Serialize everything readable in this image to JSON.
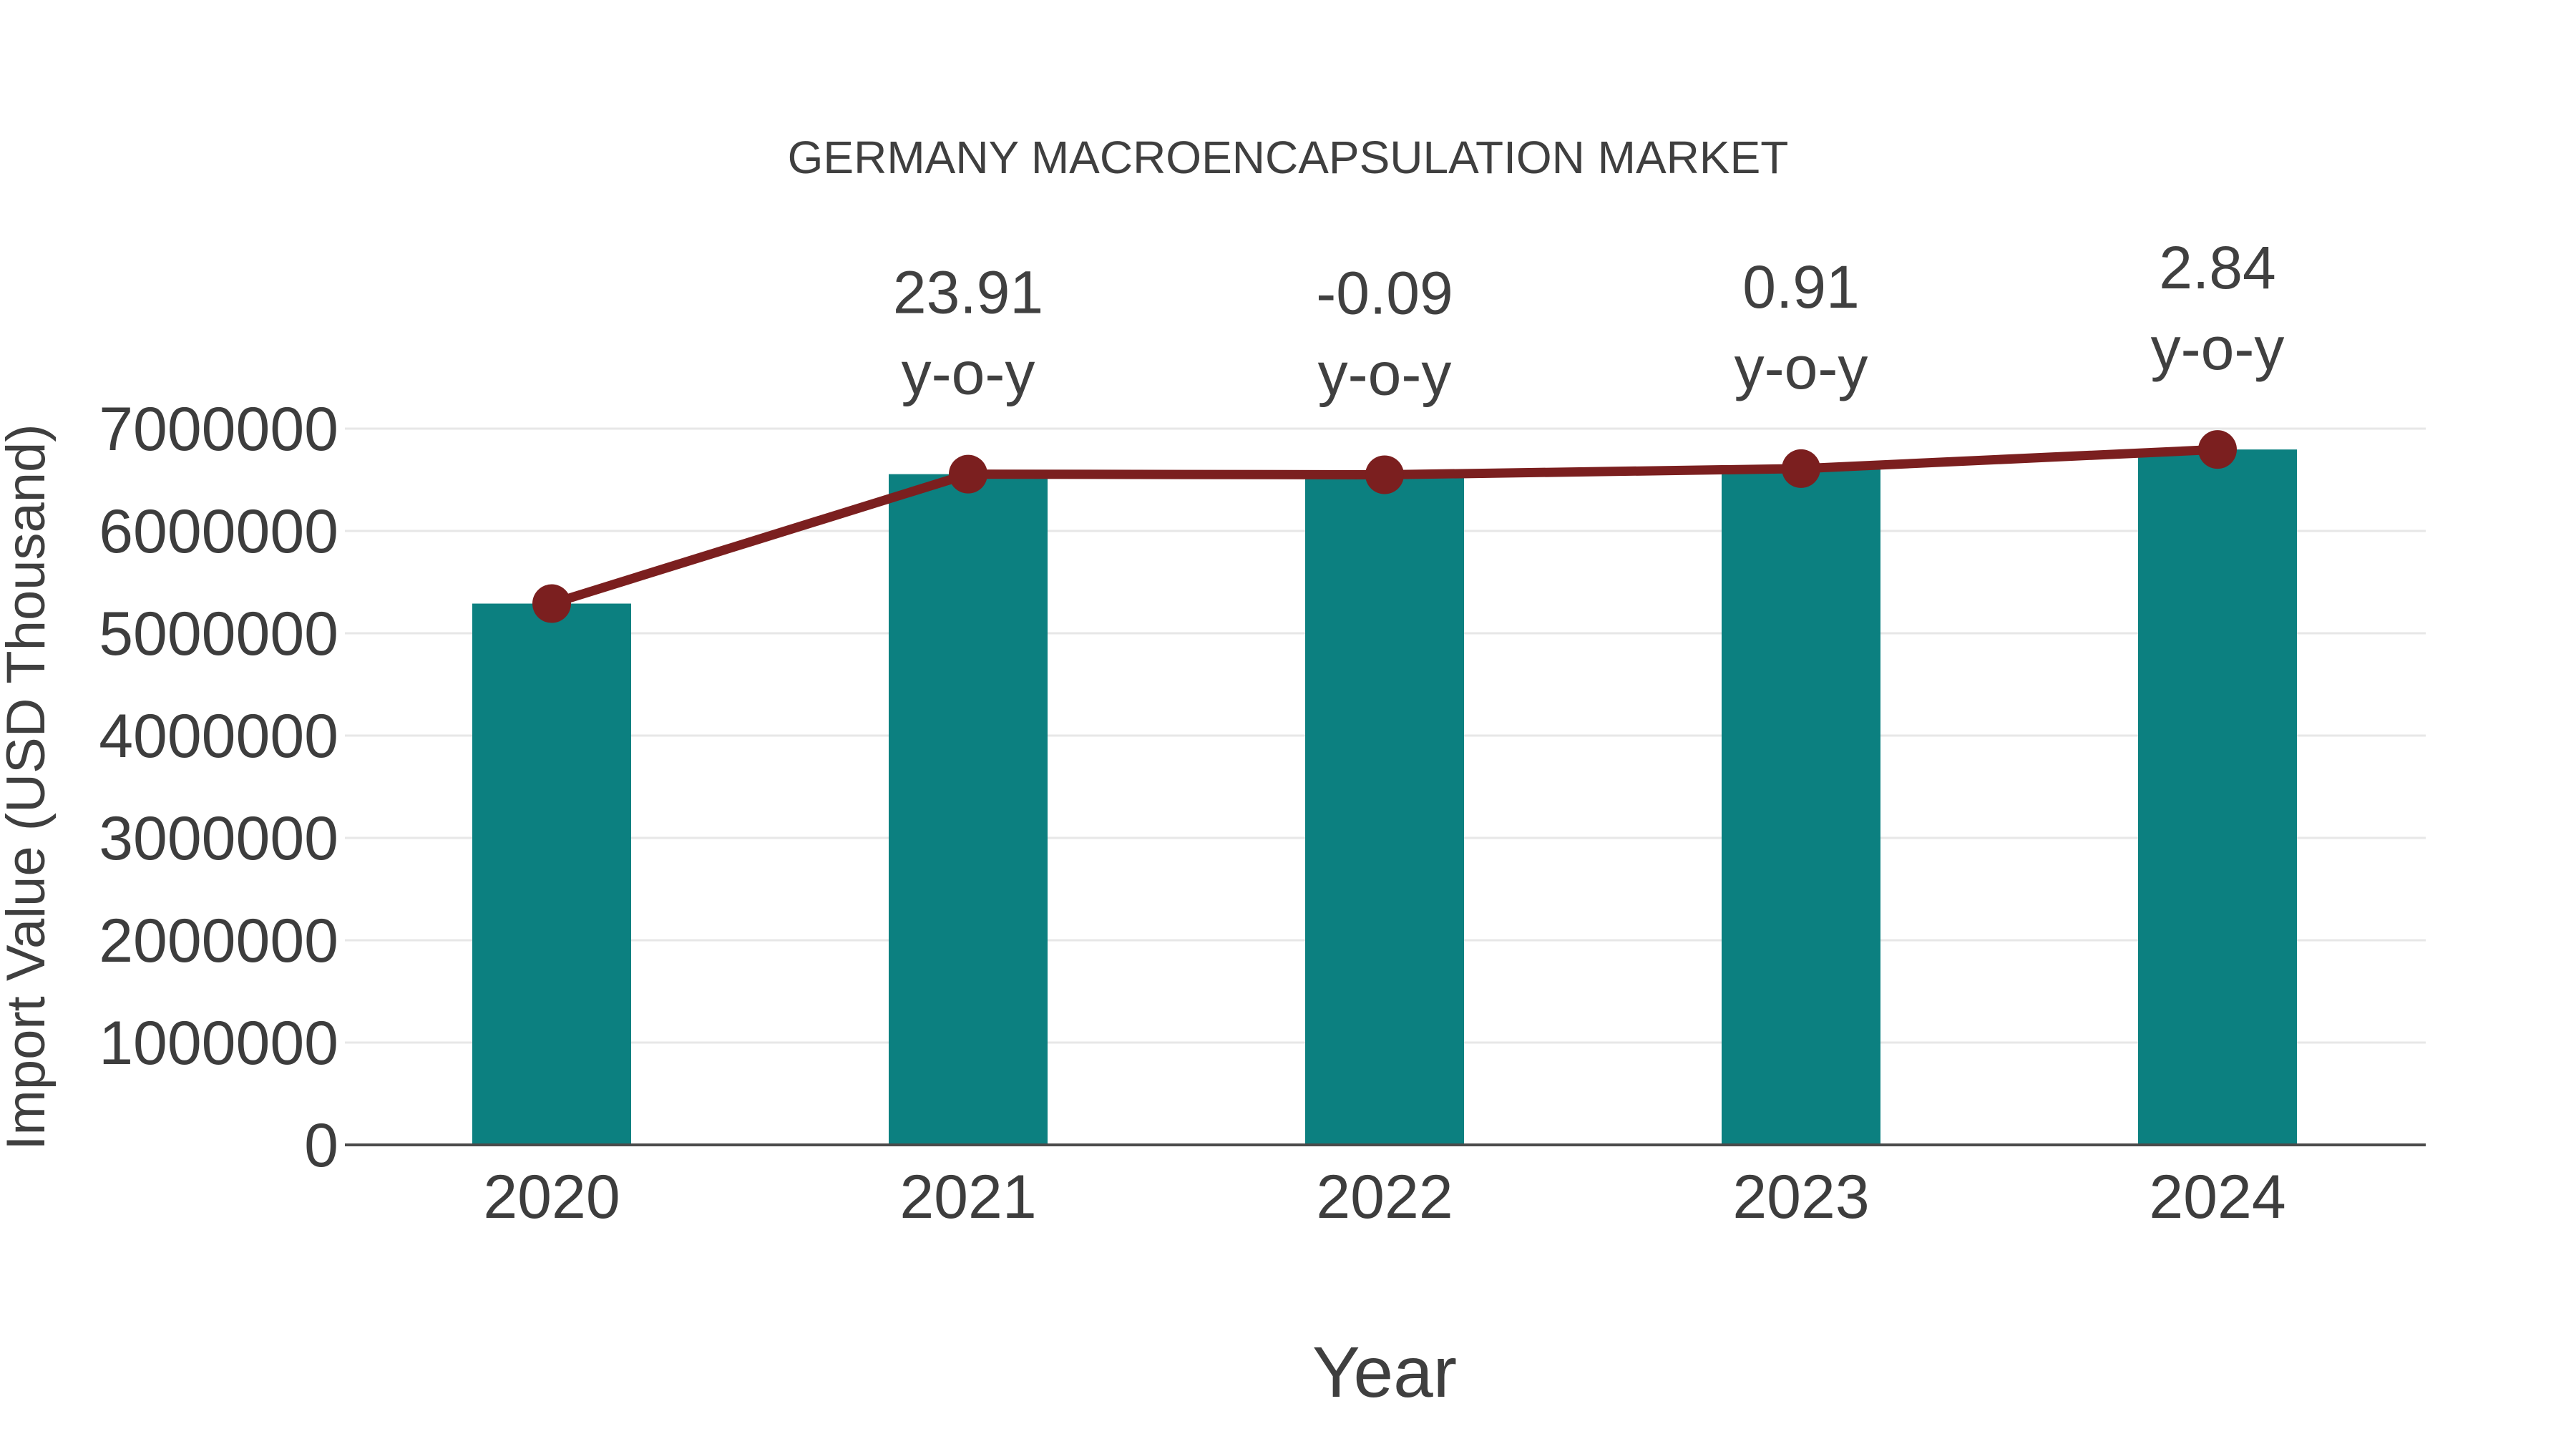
{
  "chart_data": {
    "type": "bar",
    "title": "GERMANY MACROENCAPSULATION MARKET",
    "xlabel": "Year",
    "ylabel": "Import Value (USD Thousand)",
    "categories": [
      "2020",
      "2021",
      "2022",
      "2023",
      "2024"
    ],
    "series": [
      {
        "name": "import-value-bars",
        "type": "bar",
        "values": [
          5290000,
          6555000,
          6549000,
          6609000,
          6796000
        ]
      },
      {
        "name": "yoy-trend-line",
        "type": "line",
        "values": [
          5290000,
          6555000,
          6549000,
          6609000,
          6796000
        ]
      }
    ],
    "annotations": [
      {
        "category": "2021",
        "value_text": "23.91",
        "suffix_text": "y-o-y"
      },
      {
        "category": "2022",
        "value_text": "-0.09",
        "suffix_text": "y-o-y"
      },
      {
        "category": "2023",
        "value_text": "0.91",
        "suffix_text": "y-o-y"
      },
      {
        "category": "2024",
        "value_text": "2.84",
        "suffix_text": "y-o-y"
      }
    ],
    "ylim": [
      0,
      7000000
    ],
    "yticks": [
      0,
      1000000,
      2000000,
      3000000,
      4000000,
      5000000,
      6000000,
      7000000
    ],
    "grid": "horizontal",
    "legend_position": "none",
    "colors": {
      "bar": "#0c8080",
      "line": "#7b1f1f",
      "marker": "#7b1f1f",
      "gridline": "#e7e7e7",
      "axis": "#4a4a4a",
      "text": "#3d3d3d"
    }
  }
}
